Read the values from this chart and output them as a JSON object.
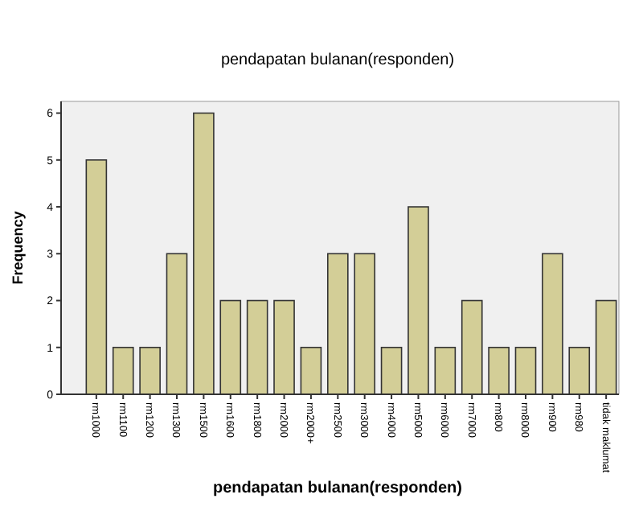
{
  "chart_data": {
    "type": "bar",
    "title": "pendapatan bulanan(responden)",
    "xlabel": "pendapatan bulanan(responden)",
    "ylabel": "Frequency",
    "categories": [
      "rm1000",
      "rm1100",
      "rm1200",
      "rm1300",
      "rm1500",
      "rm1600",
      "rm1800",
      "rm2000",
      "rm2000+",
      "rm2500",
      "rm3000",
      "rm4000",
      "rm5000",
      "rm6000",
      "rm7000",
      "rm800",
      "rm8000",
      "rm900",
      "rm980",
      "tidak maklumat"
    ],
    "values": [
      5,
      1,
      1,
      3,
      6,
      2,
      2,
      2,
      1,
      3,
      3,
      1,
      4,
      1,
      2,
      1,
      1,
      3,
      1,
      2
    ],
    "color": "#d3ce97",
    "ylim": [
      0,
      6.25
    ],
    "yticks": [
      0,
      1,
      2,
      3,
      4,
      5,
      6
    ],
    "grid": false
  }
}
